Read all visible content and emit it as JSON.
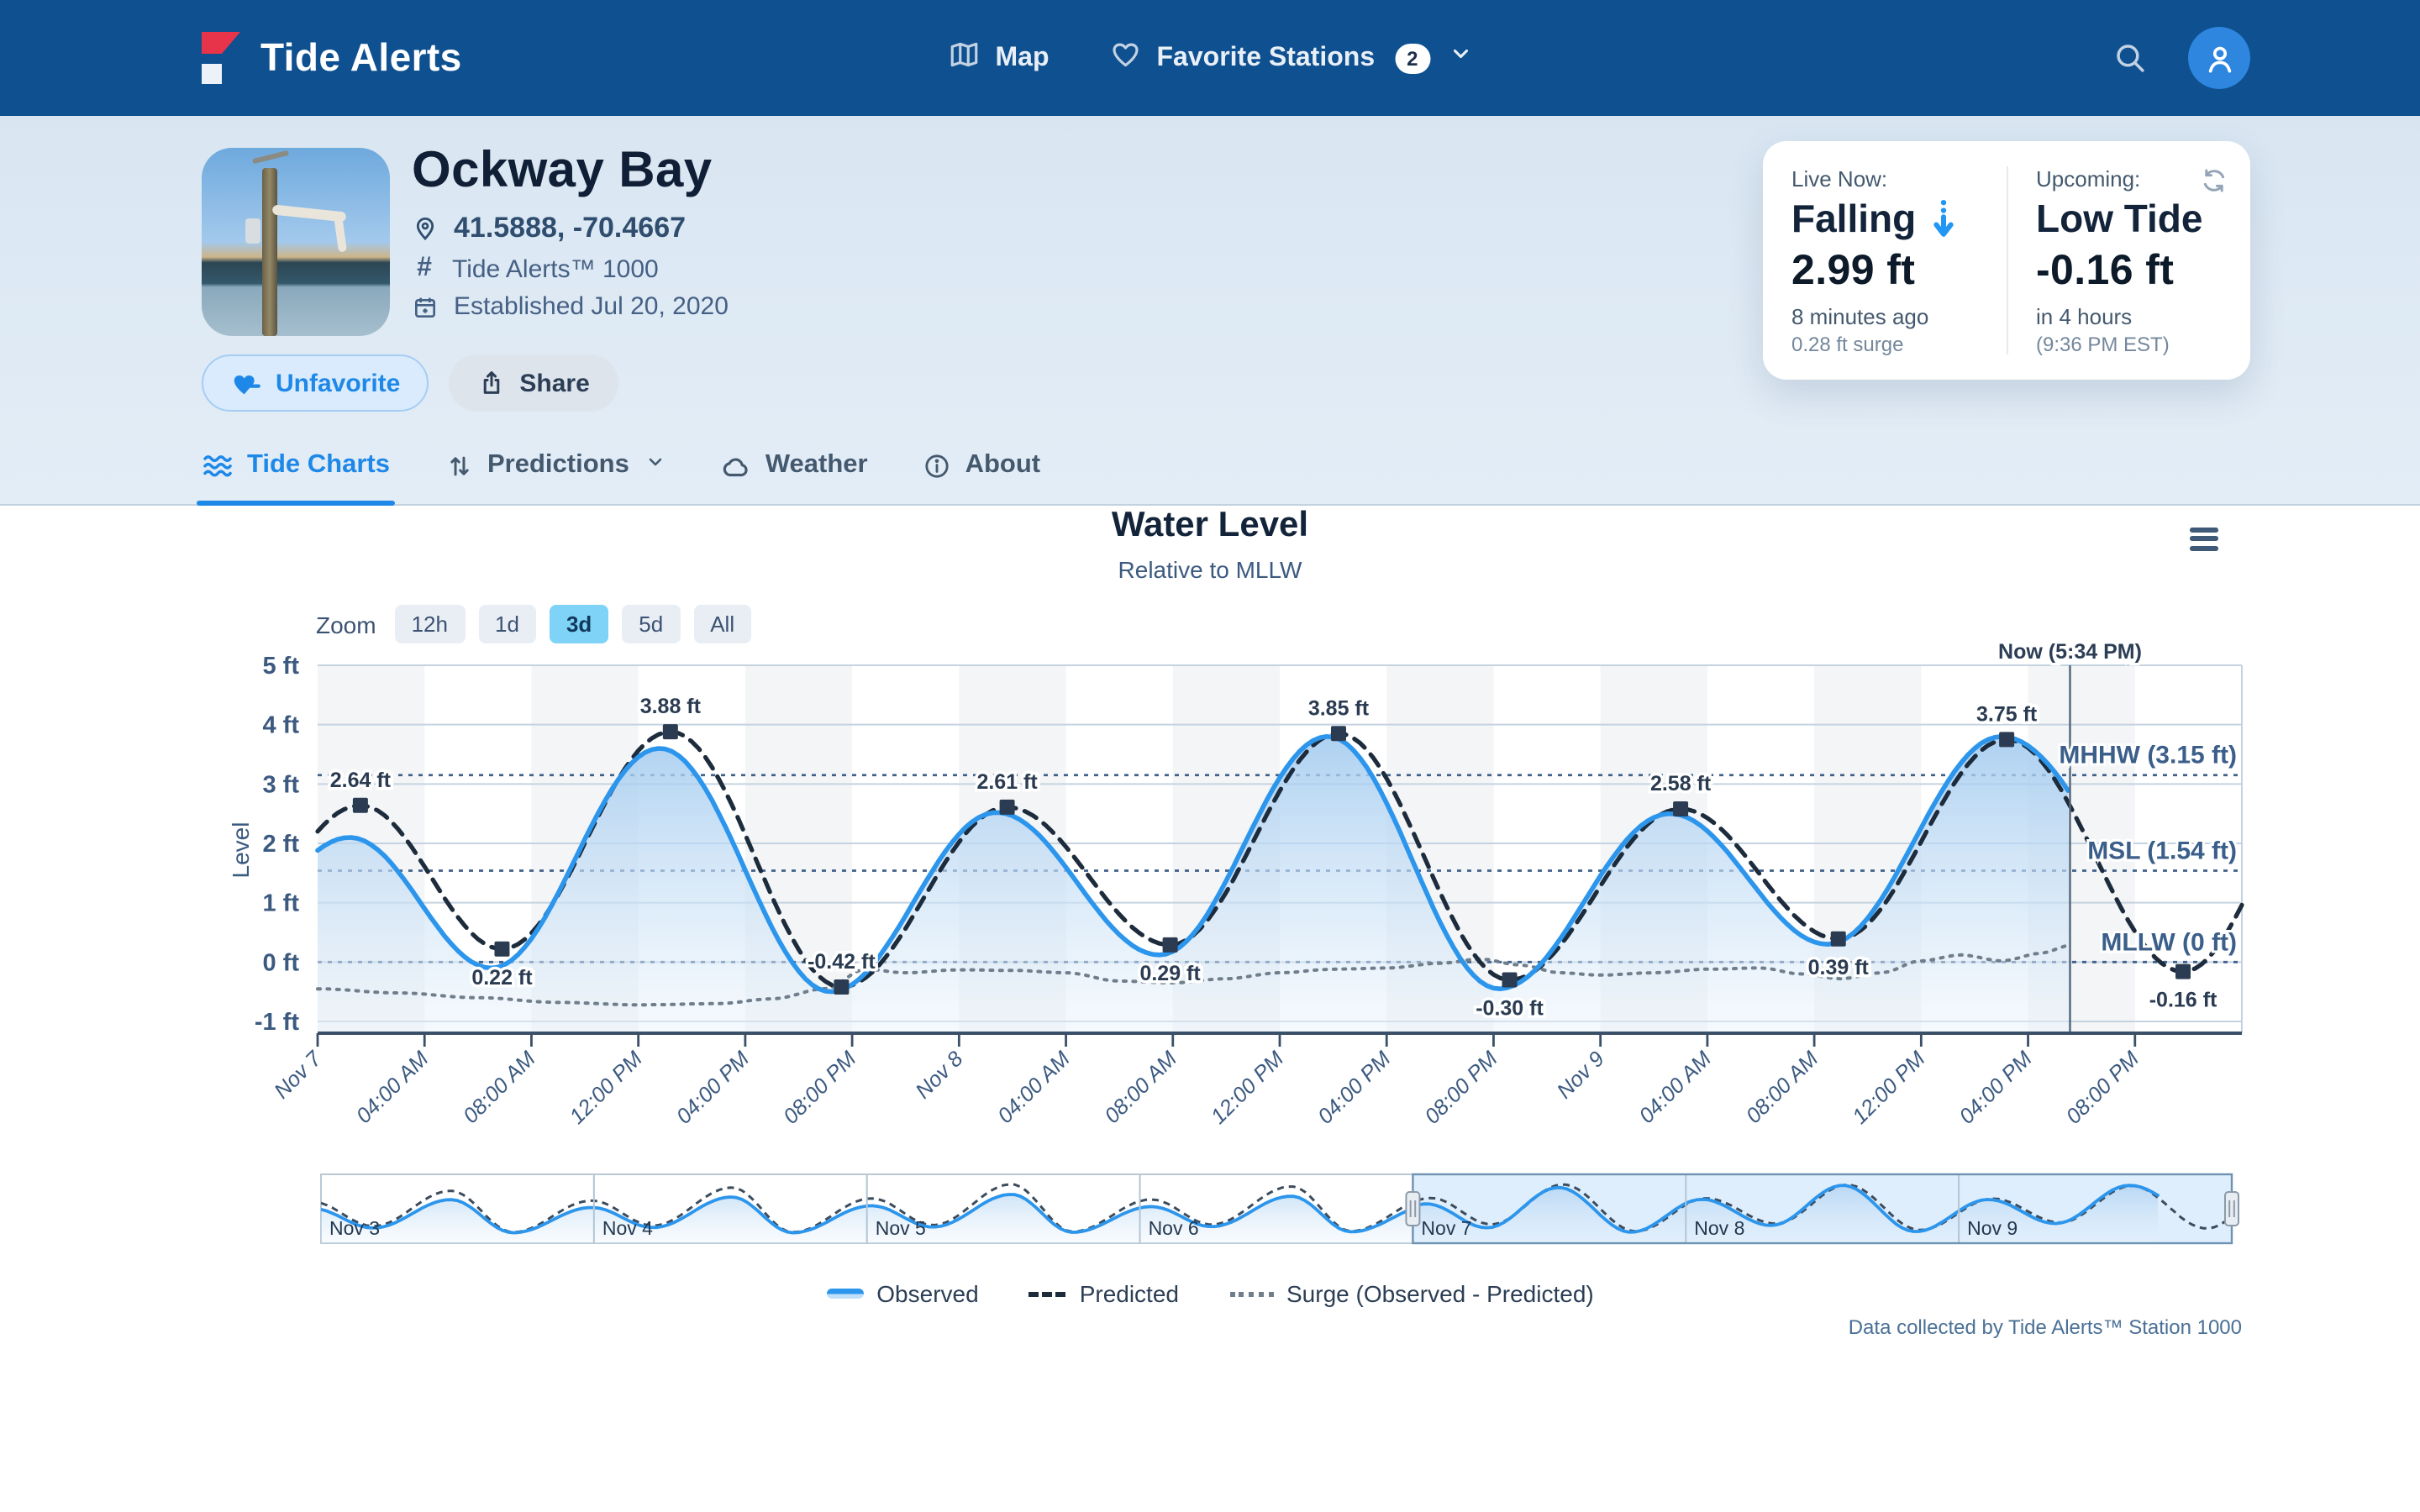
{
  "navbar": {
    "brand": "Tide Alerts",
    "map_label": "Map",
    "favorites_label": "Favorite Stations",
    "favorites_count": "2"
  },
  "station": {
    "name": "Ockway Bay",
    "coordinates": "41.5888, -70.4667",
    "station_id": "Tide Alerts™ 1000",
    "established": "Established Jul 20, 2020"
  },
  "actions": {
    "unfavorite": "Unfavorite",
    "share": "Share"
  },
  "tabs": {
    "tide_charts": "Tide Charts",
    "predictions": "Predictions",
    "weather": "Weather",
    "about": "About"
  },
  "live_card": {
    "live_label": "Live Now:",
    "trend": "Falling",
    "current_value": "2.99 ft",
    "updated": "8 minutes ago",
    "surge": "0.28 ft surge",
    "upcoming_label": "Upcoming:",
    "upcoming_event": "Low Tide",
    "upcoming_value": "-0.16 ft",
    "upcoming_eta": "in 4 hours",
    "upcoming_time": "(9:36 PM EST)"
  },
  "chart": {
    "title": "Water Level",
    "subtitle": "Relative to MLLW",
    "zoom_label": "Zoom",
    "zoom_options": [
      "12h",
      "1d",
      "3d",
      "5d",
      "All"
    ],
    "zoom_active_index": 2
  },
  "chart_data": {
    "type": "line",
    "title": "Water Level",
    "subtitle": "Relative to MLLW",
    "ylabel": "Level",
    "ylim": [
      -1.2,
      5
    ],
    "yticks": [
      {
        "v": 5,
        "label": "5 ft"
      },
      {
        "v": 4,
        "label": "4 ft"
      },
      {
        "v": 3,
        "label": "3 ft"
      },
      {
        "v": 2,
        "label": "2 ft"
      },
      {
        "v": 1,
        "label": "1 ft"
      },
      {
        "v": 0,
        "label": "0 ft"
      },
      {
        "v": -1,
        "label": "-1 ft"
      }
    ],
    "x_hours_range": [
      0,
      72
    ],
    "x_base": "Nov 7 00:00",
    "xticks": [
      {
        "h": 0,
        "label": "Nov 7"
      },
      {
        "h": 4,
        "label": "04:00 AM"
      },
      {
        "h": 8,
        "label": "08:00 AM"
      },
      {
        "h": 12,
        "label": "12:00 PM"
      },
      {
        "h": 16,
        "label": "04:00 PM"
      },
      {
        "h": 20,
        "label": "08:00 PM"
      },
      {
        "h": 24,
        "label": "Nov 8"
      },
      {
        "h": 28,
        "label": "04:00 AM"
      },
      {
        "h": 32,
        "label": "08:00 AM"
      },
      {
        "h": 36,
        "label": "12:00 PM"
      },
      {
        "h": 40,
        "label": "04:00 PM"
      },
      {
        "h": 44,
        "label": "08:00 PM"
      },
      {
        "h": 48,
        "label": "Nov 9"
      },
      {
        "h": 52,
        "label": "04:00 AM"
      },
      {
        "h": 56,
        "label": "08:00 AM"
      },
      {
        "h": 60,
        "label": "12:00 PM"
      },
      {
        "h": 64,
        "label": "04:00 PM"
      },
      {
        "h": 68,
        "label": "08:00 PM"
      }
    ],
    "now": {
      "hour": 65.57,
      "label": "Now (5:34 PM)"
    },
    "reference_lines": [
      {
        "value": 3.15,
        "label": "MHHW (3.15 ft)"
      },
      {
        "value": 1.54,
        "label": "MSL (1.54 ft)"
      },
      {
        "value": 0,
        "label": "MLLW (0 ft)"
      }
    ],
    "series": {
      "observed": {
        "name": "Observed",
        "color": "#2c95ec",
        "style": "solid",
        "end_hour": 65.57,
        "extremes": [
          [
            -5.2,
            -0.5
          ],
          [
            1.2,
            2.1
          ],
          [
            6.5,
            -0.1
          ],
          [
            12.8,
            3.6
          ],
          [
            19.2,
            -0.5
          ],
          [
            25.4,
            2.52
          ],
          [
            31.5,
            0.12
          ],
          [
            37.8,
            3.8
          ],
          [
            44.2,
            -0.45
          ],
          [
            50.6,
            2.5
          ],
          [
            56.5,
            0.3
          ],
          [
            63.0,
            3.8
          ],
          [
            71.0,
            -0.3
          ]
        ]
      },
      "predicted": {
        "name": "Predicted",
        "color": "#1d2c3c",
        "style": "dashed",
        "extremes": [
          [
            -4.8,
            -0.35
          ],
          [
            1.6,
            2.64
          ],
          [
            6.9,
            0.22
          ],
          [
            13.2,
            3.88
          ],
          [
            19.6,
            -0.42
          ],
          [
            25.8,
            2.61
          ],
          [
            31.9,
            0.29
          ],
          [
            38.2,
            3.85
          ],
          [
            44.6,
            -0.3
          ],
          [
            51.0,
            2.58
          ],
          [
            56.9,
            0.39
          ],
          [
            63.2,
            3.75
          ],
          [
            69.8,
            -0.16
          ],
          [
            75.6,
            3.4
          ]
        ],
        "labeled_points": [
          {
            "h": 1.6,
            "v": 2.64,
            "label": "2.64 ft",
            "side": "above"
          },
          {
            "h": 6.9,
            "v": 0.22,
            "label": "0.22 ft",
            "side": "below"
          },
          {
            "h": 13.2,
            "v": 3.88,
            "label": "3.88 ft",
            "side": "above"
          },
          {
            "h": 19.6,
            "v": -0.42,
            "label": "-0.42 ft",
            "side": "above"
          },
          {
            "h": 25.8,
            "v": 2.61,
            "label": "2.61 ft",
            "side": "above"
          },
          {
            "h": 31.9,
            "v": 0.29,
            "label": "0.29 ft",
            "side": "below"
          },
          {
            "h": 38.2,
            "v": 3.85,
            "label": "3.85 ft",
            "side": "above"
          },
          {
            "h": 44.6,
            "v": -0.3,
            "label": "-0.30 ft",
            "side": "below"
          },
          {
            "h": 51.0,
            "v": 2.58,
            "label": "2.58 ft",
            "side": "above"
          },
          {
            "h": 56.9,
            "v": 0.39,
            "label": "0.39 ft",
            "side": "below"
          },
          {
            "h": 63.2,
            "v": 3.75,
            "label": "3.75 ft",
            "side": "above"
          },
          {
            "h": 69.8,
            "v": -0.16,
            "label": "-0.16 ft",
            "side": "below"
          }
        ]
      },
      "surge": {
        "name": "Surge (Observed - Predicted)",
        "color": "#707e8c",
        "style": "dotted",
        "points": [
          [
            0,
            -0.45
          ],
          [
            3,
            -0.52
          ],
          [
            6,
            -0.6
          ],
          [
            9,
            -0.68
          ],
          [
            12,
            -0.72
          ],
          [
            15,
            -0.7
          ],
          [
            17,
            -0.62
          ],
          [
            19,
            -0.45
          ],
          [
            20.5,
            -0.12
          ],
          [
            22,
            -0.18
          ],
          [
            24,
            -0.13
          ],
          [
            26,
            -0.14
          ],
          [
            28,
            -0.18
          ],
          [
            30,
            -0.32
          ],
          [
            32,
            -0.35
          ],
          [
            34,
            -0.28
          ],
          [
            36,
            -0.18
          ],
          [
            38,
            -0.12
          ],
          [
            40,
            -0.1
          ],
          [
            42,
            -0.02
          ],
          [
            43.5,
            0.05
          ],
          [
            45,
            -0.05
          ],
          [
            46.5,
            -0.18
          ],
          [
            48,
            -0.22
          ],
          [
            50,
            -0.18
          ],
          [
            52,
            -0.12
          ],
          [
            54,
            -0.1
          ],
          [
            55.5,
            -0.2
          ],
          [
            57,
            -0.28
          ],
          [
            58.5,
            -0.18
          ],
          [
            60,
            0.02
          ],
          [
            61.5,
            0.12
          ],
          [
            63,
            0.02
          ],
          [
            64.5,
            0.15
          ],
          [
            65.57,
            0.28
          ]
        ]
      }
    },
    "navigator": {
      "day_labels": [
        "Nov 3",
        "Nov 4",
        "Nov 5",
        "Nov 6",
        "Nov 7",
        "Nov 8",
        "Nov 9"
      ],
      "range_hours": [
        -96,
        72
      ],
      "selected_range_hours": [
        0,
        72
      ],
      "observed_end_hour": 65.57,
      "predicted_extremes": [
        [
          -96.8,
          2.3
        ],
        [
          -91.4,
          0.05
        ],
        [
          -84.6,
          3.3
        ],
        [
          -79.1,
          -0.5
        ],
        [
          -72.2,
          2.4
        ],
        [
          -66.8,
          0.1
        ],
        [
          -59.9,
          3.6
        ],
        [
          -54.5,
          -0.5
        ],
        [
          -47.6,
          2.6
        ],
        [
          -42.2,
          0.15
        ],
        [
          -35.3,
          3.9
        ],
        [
          -29.9,
          -0.45
        ],
        [
          -23.0,
          2.5
        ],
        [
          -17.7,
          0.2
        ],
        [
          -10.7,
          3.7
        ],
        [
          -5.4,
          -0.4
        ],
        [
          1.6,
          2.64
        ],
        [
          6.9,
          0.22
        ],
        [
          13.2,
          3.88
        ],
        [
          19.6,
          -0.42
        ],
        [
          25.8,
          2.61
        ],
        [
          31.9,
          0.29
        ],
        [
          38.2,
          3.85
        ],
        [
          44.6,
          -0.3
        ],
        [
          51.0,
          2.58
        ],
        [
          56.9,
          0.39
        ],
        [
          63.2,
          3.75
        ],
        [
          69.8,
          -0.16
        ],
        [
          75.6,
          3.4
        ]
      ]
    },
    "colors": {
      "observed": "#2c95ec",
      "predicted": "#1d2c3c",
      "surge": "#707e8c",
      "accent": "#1e88e8",
      "navbar": "#0E5090",
      "grid": "#c5d3e0",
      "axis_text": "#3c5a80",
      "reference": "#41618c",
      "band": "#f3f5f7"
    }
  },
  "legend": {
    "observed": "Observed",
    "predicted": "Predicted",
    "surge": "Surge (Observed - Predicted)"
  },
  "footer": "Data collected by Tide Alerts™ Station 1000"
}
